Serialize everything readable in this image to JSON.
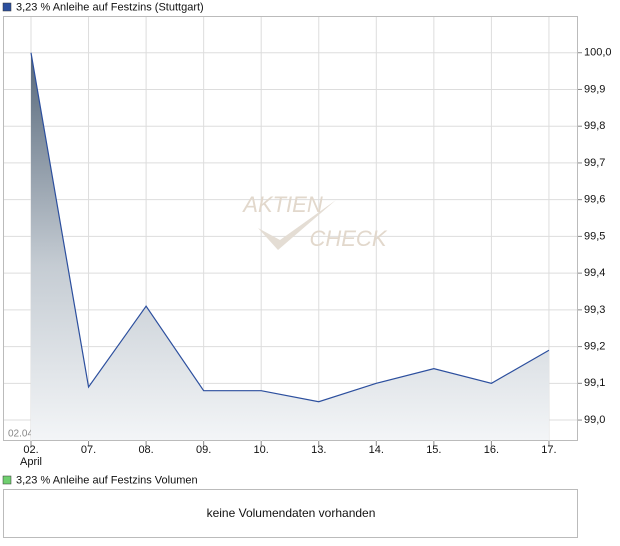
{
  "chart_data": {
    "type": "line",
    "title": "3,23 % Anleihe auf Festzins (Stuttgart)",
    "categories": [
      "02.",
      "07.",
      "08.",
      "09.",
      "10.",
      "13.",
      "14.",
      "15.",
      "16.",
      "17."
    ],
    "x_sublabel": "April",
    "date_range": "02.04.26 - 17.04.26",
    "watermark": [
      "AKTIEN",
      "CHECK"
    ],
    "series": [
      {
        "name": "3,23 % Anleihe auf Festzins (Stuttgart)",
        "color": "#2c4f9e",
        "values": [
          100.0,
          99.09,
          99.31,
          99.08,
          99.08,
          99.05,
          99.1,
          99.14,
          99.1,
          99.19
        ]
      }
    ],
    "ylim": [
      98.943,
      100.1
    ],
    "yticks": [
      {
        "value": 99.0,
        "label": "99,0"
      },
      {
        "value": 99.1,
        "label": "99,1"
      },
      {
        "value": 99.2,
        "label": "99,2"
      },
      {
        "value": 99.3,
        "label": "99,3"
      },
      {
        "value": 99.4,
        "label": "99,4"
      },
      {
        "value": 99.5,
        "label": "99,5"
      },
      {
        "value": 99.6,
        "label": "99,6"
      },
      {
        "value": 99.7,
        "label": "99,7"
      },
      {
        "value": 99.8,
        "label": "99,8"
      },
      {
        "value": 99.9,
        "label": "99,9"
      },
      {
        "value": 100.0,
        "label": "100,0"
      }
    ],
    "grid": true
  },
  "volume": {
    "title": "3,23 % Anleihe auf Festzins Volumen",
    "message": "keine Volumendaten vorhanden"
  }
}
